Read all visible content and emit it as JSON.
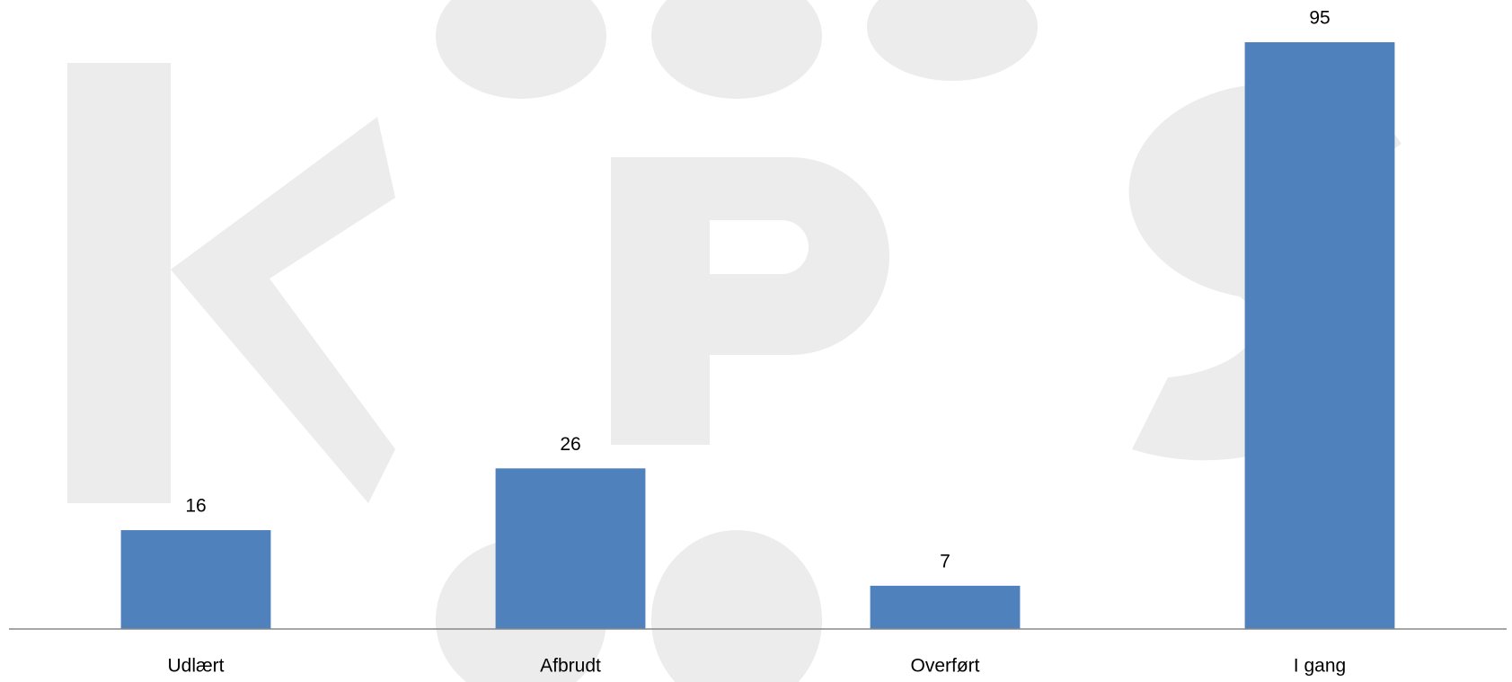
{
  "chart_data": {
    "type": "bar",
    "categories": [
      "Udlært",
      "Afbrudt",
      "Overført",
      "I gang"
    ],
    "values": [
      16,
      26,
      7,
      95
    ],
    "color": "#4f81bd"
  }
}
